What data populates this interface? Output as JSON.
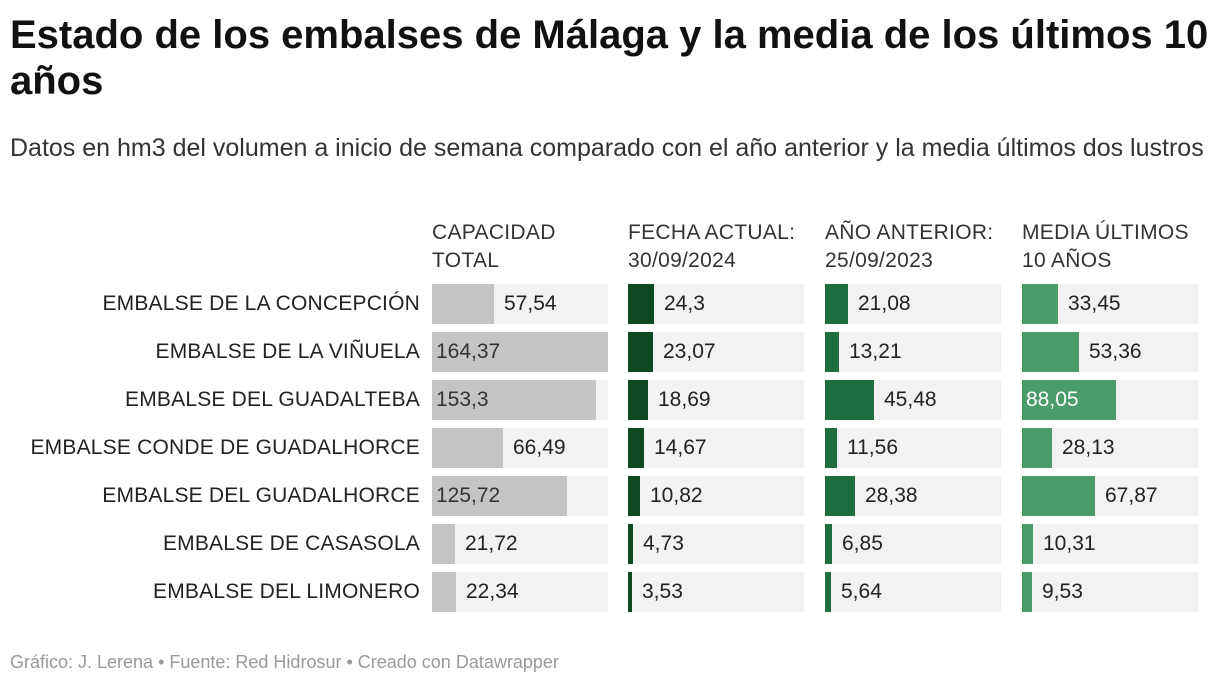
{
  "title": "Estado de los embalses de Málaga y la media de los últimos 10 años",
  "subtitle": "Datos en hm3 del volumen a inicio de semana comparado con el año anterior y la media últimos dos lustros",
  "footer": "Gráfico: J. Lerena • Fuente: Red Hidrosur • Creado con Datawrapper",
  "colors": {
    "capacidad": "#c4c4c4",
    "actual": "#0b4a23",
    "anterior": "#1e6e3f",
    "media": "#4a9c68",
    "track": "#f2f2f2"
  },
  "chart_data": {
    "type": "bar",
    "categories": [
      "EMBALSE DE LA CONCEPCIÓN",
      "EMBALSE DE LA VIÑUELA",
      "EMBALSE DEL GUADALTEBA",
      "EMBALSE CONDE DE GUADALHORCE",
      "EMBALSE DEL GUADALHORCE",
      "EMBALSE DE CASASOLA",
      "EMBALSE DEL LIMONERO"
    ],
    "series": [
      {
        "name": "CAPACIDAD TOTAL",
        "header": [
          "CAPACIDAD",
          "TOTAL"
        ],
        "values": [
          57.54,
          164.37,
          153.3,
          66.49,
          125.72,
          21.72,
          22.34
        ],
        "labels": [
          "57,54",
          "164,37",
          "153,3",
          "66,49",
          "125,72",
          "21,72",
          "22,34"
        ]
      },
      {
        "name": "FECHA ACTUAL: 30/09/2024",
        "header": [
          "FECHA ACTUAL:",
          "30/09/2024"
        ],
        "values": [
          24.3,
          23.07,
          18.69,
          14.67,
          10.82,
          4.73,
          3.53
        ],
        "labels": [
          "24,3",
          "23,07",
          "18,69",
          "14,67",
          "10,82",
          "4,73",
          "3,53"
        ]
      },
      {
        "name": "AÑO ANTERIOR: 25/09/2023",
        "header": [
          "AÑO ANTERIOR:",
          "25/09/2023"
        ],
        "values": [
          21.08,
          13.21,
          45.48,
          11.56,
          28.38,
          6.85,
          5.64
        ],
        "labels": [
          "21,08",
          "13,21",
          "45,48",
          "11,56",
          "28,38",
          "6,85",
          "5,64"
        ]
      },
      {
        "name": "MEDIA ÚLTIMOS 10 AÑOS",
        "header": [
          "MEDIA ÚLTIMOS",
          "10 AÑOS"
        ],
        "values": [
          33.45,
          53.36,
          88.05,
          28.13,
          67.87,
          10.31,
          9.53
        ],
        "labels": [
          "33,45",
          "53,36",
          "88,05",
          "28,13",
          "67,87",
          "10,31",
          "9,53"
        ]
      }
    ],
    "xlim": [
      0,
      164.37
    ],
    "grid": false,
    "legend": "none"
  }
}
